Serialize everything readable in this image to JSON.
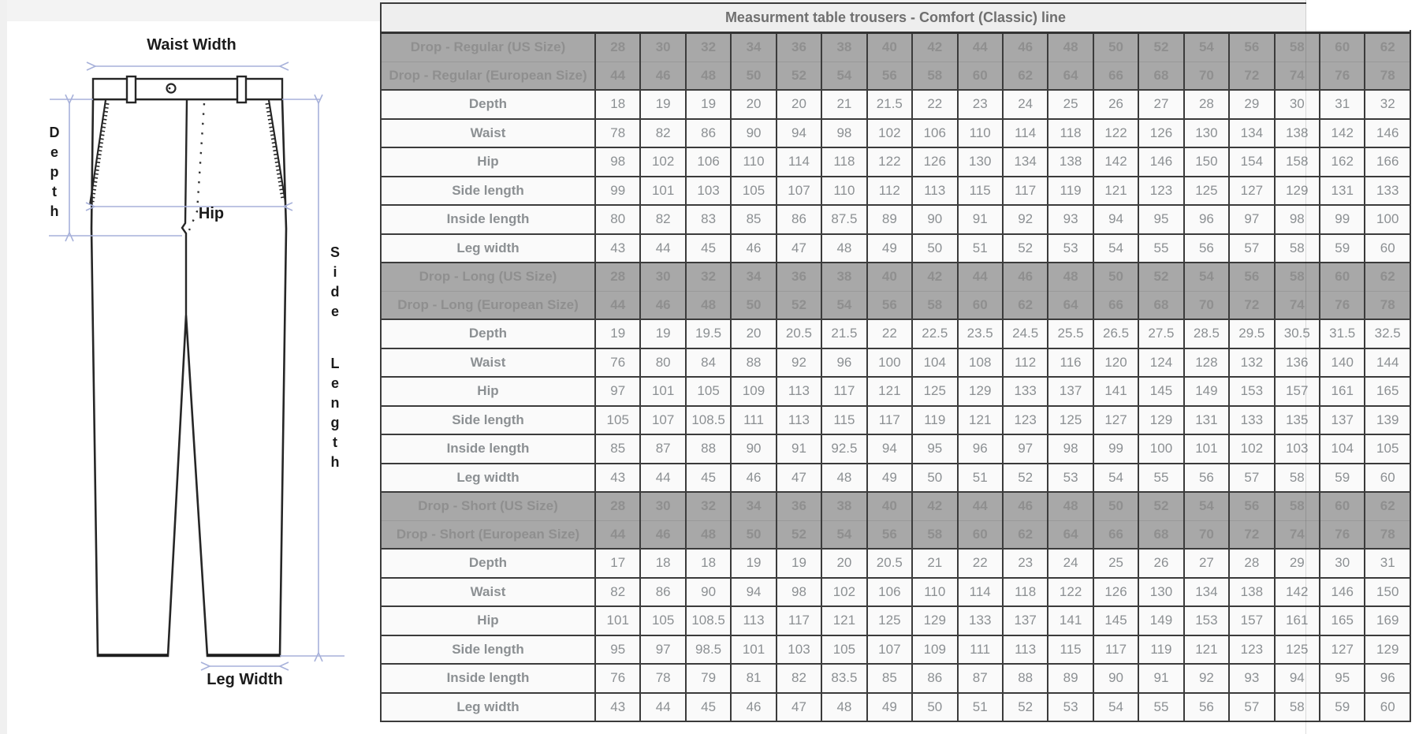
{
  "colors": {
    "page_gray": "#f3f3f3",
    "band_background": "#a8a8a8",
    "band_text": "#8f8f8f",
    "cell_background": "#fafafa",
    "grid_border": "#3b3b3b",
    "dimension_arrow": "#a7b1da",
    "diagram_line": "#262626"
  },
  "diagram": {
    "labels": {
      "waist_width": "Waist Width",
      "depth": "Depth",
      "hip": "Hip",
      "side_length": "Side Length",
      "leg_width": "Leg Width"
    }
  },
  "table": {
    "title": "Measurment table trousers - Comfort (Classic) line",
    "sections": [
      {
        "name": "Drop - Regular",
        "size_rows": [
          {
            "label": "Drop - Regular (US Size)",
            "values": [
              28,
              30,
              32,
              34,
              36,
              38,
              40,
              42,
              44,
              46,
              48,
              50,
              52,
              54,
              56,
              58,
              60,
              62
            ]
          },
          {
            "label": "Drop - Regular (European Size)",
            "values": [
              44,
              46,
              48,
              50,
              52,
              54,
              56,
              58,
              60,
              62,
              64,
              66,
              68,
              70,
              72,
              74,
              76,
              78
            ]
          }
        ],
        "measure_rows": [
          {
            "label": "Depth",
            "values": [
              18,
              19,
              19,
              20,
              20,
              21,
              21.5,
              22,
              23,
              24,
              25,
              26,
              27,
              28,
              29,
              30,
              31,
              32
            ]
          },
          {
            "label": "Waist",
            "values": [
              78,
              82,
              86,
              90,
              94,
              98,
              102,
              106,
              110,
              114,
              118,
              122,
              126,
              130,
              134,
              138,
              142,
              146
            ]
          },
          {
            "label": "Hip",
            "values": [
              98,
              102,
              106,
              110,
              114,
              118,
              122,
              126,
              130,
              134,
              138,
              142,
              146,
              150,
              154,
              158,
              162,
              166
            ]
          },
          {
            "label": "Side length",
            "values": [
              99,
              101,
              103,
              105,
              107,
              110,
              112,
              113,
              115,
              117,
              119,
              121,
              123,
              125,
              127,
              129,
              131,
              133
            ]
          },
          {
            "label": "Inside length",
            "values": [
              80,
              82,
              83,
              85,
              86,
              87.5,
              89,
              90,
              91,
              92,
              93,
              94,
              95,
              96,
              97,
              98,
              99,
              100
            ]
          },
          {
            "label": "Leg width",
            "values": [
              43,
              44,
              45,
              46,
              47,
              48,
              49,
              50,
              51,
              52,
              53,
              54,
              55,
              56,
              57,
              58,
              59,
              60
            ]
          }
        ]
      },
      {
        "name": "Drop - Long",
        "size_rows": [
          {
            "label": "Drop - Long (US Size)",
            "values": [
              28,
              30,
              32,
              34,
              36,
              38,
              40,
              42,
              44,
              46,
              48,
              50,
              52,
              54,
              56,
              58,
              60,
              62
            ]
          },
          {
            "label": "Drop - Long (European Size)",
            "values": [
              44,
              46,
              48,
              50,
              52,
              54,
              56,
              58,
              60,
              62,
              64,
              66,
              68,
              70,
              72,
              74,
              76,
              78
            ]
          }
        ],
        "measure_rows": [
          {
            "label": "Depth",
            "values": [
              19,
              19,
              19.5,
              20,
              20.5,
              21.5,
              22,
              22.5,
              23.5,
              24.5,
              25.5,
              26.5,
              27.5,
              28.5,
              29.5,
              30.5,
              31.5,
              32.5
            ]
          },
          {
            "label": "Waist",
            "values": [
              76,
              80,
              84,
              88,
              92,
              96,
              100,
              104,
              108,
              112,
              116,
              120,
              124,
              128,
              132,
              136,
              140,
              144
            ]
          },
          {
            "label": "Hip",
            "values": [
              97,
              101,
              105,
              109,
              113,
              117,
              121,
              125,
              129,
              133,
              137,
              141,
              145,
              149,
              153,
              157,
              161,
              165
            ]
          },
          {
            "label": "Side length",
            "values": [
              105,
              107,
              108.5,
              111,
              113,
              115,
              117,
              119,
              121,
              123,
              125,
              127,
              129,
              131,
              133,
              135,
              137,
              139
            ]
          },
          {
            "label": "Inside length",
            "values": [
              85,
              87,
              88,
              90,
              91,
              92.5,
              94,
              95,
              96,
              97,
              98,
              99,
              100,
              101,
              102,
              103,
              104,
              105
            ]
          },
          {
            "label": "Leg width",
            "values": [
              43,
              44,
              45,
              46,
              47,
              48,
              49,
              50,
              51,
              52,
              53,
              54,
              55,
              56,
              57,
              58,
              59,
              60
            ]
          }
        ]
      },
      {
        "name": "Drop - Short",
        "size_rows": [
          {
            "label": "Drop - Short (US Size)",
            "values": [
              28,
              30,
              32,
              34,
              36,
              38,
              40,
              42,
              44,
              46,
              48,
              50,
              52,
              54,
              56,
              58,
              60,
              62
            ]
          },
          {
            "label": "Drop - Short (European Size)",
            "values": [
              44,
              46,
              48,
              50,
              52,
              54,
              56,
              58,
              60,
              62,
              64,
              66,
              68,
              70,
              72,
              74,
              76,
              78
            ]
          }
        ],
        "measure_rows": [
          {
            "label": "Depth",
            "values": [
              17,
              18,
              18,
              19,
              19,
              20,
              20.5,
              21,
              22,
              23,
              24,
              25,
              26,
              27,
              28,
              29,
              30,
              31
            ]
          },
          {
            "label": "Waist",
            "values": [
              82,
              86,
              90,
              94,
              98,
              102,
              106,
              110,
              114,
              118,
              122,
              126,
              130,
              134,
              138,
              142,
              146,
              150
            ]
          },
          {
            "label": "Hip",
            "values": [
              101,
              105,
              108.5,
              113,
              117,
              121,
              125,
              129,
              133,
              137,
              141,
              145,
              149,
              153,
              157,
              161,
              165,
              169
            ]
          },
          {
            "label": "Side length",
            "values": [
              95,
              97,
              98.5,
              101,
              103,
              105,
              107,
              109,
              111,
              113,
              115,
              117,
              119,
              121,
              123,
              125,
              127,
              129
            ]
          },
          {
            "label": "Inside length",
            "values": [
              76,
              78,
              79,
              81,
              82,
              83.5,
              85,
              86,
              87,
              88,
              89,
              90,
              91,
              92,
              93,
              94,
              95,
              96
            ]
          },
          {
            "label": "Leg width",
            "values": [
              43,
              44,
              45,
              46,
              47,
              48,
              49,
              50,
              51,
              52,
              53,
              54,
              55,
              56,
              57,
              58,
              59,
              60
            ]
          }
        ]
      }
    ]
  }
}
